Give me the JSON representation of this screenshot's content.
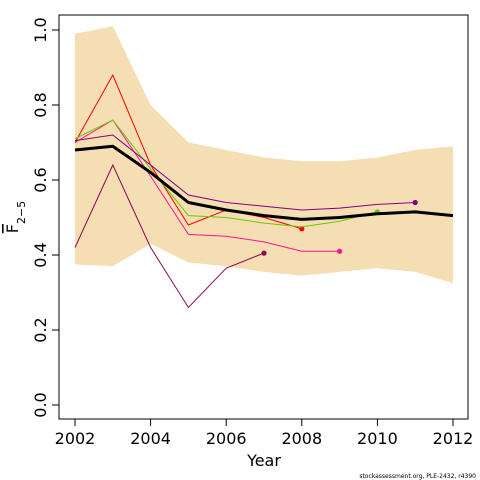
{
  "chart_data": {
    "type": "line",
    "xlabel": "Year",
    "ylabel_main": "F",
    "ylabel_sub": "2−5",
    "xlim": [
      2002,
      2012
    ],
    "ylim": [
      0,
      1
    ],
    "x_ticks": [
      "2002",
      "2004",
      "2006",
      "2008",
      "2010",
      "2012"
    ],
    "y_ticks": [
      "0.0",
      "0.2",
      "0.4",
      "0.6",
      "0.8",
      "1.0"
    ],
    "confidence_band": {
      "color": "#f5deb3",
      "x": [
        2002,
        2003,
        2004,
        2005,
        2006,
        2007,
        2008,
        2009,
        2010,
        2011,
        2012
      ],
      "upper": [
        0.99,
        1.01,
        0.8,
        0.7,
        0.68,
        0.66,
        0.65,
        0.65,
        0.66,
        0.68,
        0.69
      ],
      "lower": [
        0.375,
        0.37,
        0.43,
        0.38,
        0.37,
        0.355,
        0.345,
        0.355,
        0.365,
        0.355,
        0.325
      ]
    },
    "main_series": {
      "color": "#000000",
      "x": [
        2002,
        2003,
        2004,
        2005,
        2006,
        2007,
        2008,
        2009,
        2010,
        2011,
        2012
      ],
      "values": [
        0.68,
        0.69,
        0.62,
        0.54,
        0.52,
        0.505,
        0.495,
        0.5,
        0.51,
        0.515,
        0.505
      ]
    },
    "retro_series": [
      {
        "color": "#8b0a50",
        "end_point": true,
        "x": [
          2002,
          2003,
          2004,
          2005,
          2006,
          2007
        ],
        "values": [
          0.42,
          0.64,
          0.42,
          0.26,
          0.365,
          0.405
        ]
      },
      {
        "color": "#ff1493",
        "end_point": true,
        "x": [
          2002,
          2003,
          2004,
          2005,
          2006,
          2007,
          2008,
          2009
        ],
        "values": [
          0.7,
          0.76,
          0.61,
          0.455,
          0.45,
          0.435,
          0.41,
          0.41
        ]
      },
      {
        "color": "#ff0000",
        "end_point": true,
        "x": [
          2002,
          2003,
          2004,
          2005,
          2006,
          2007,
          2008
        ],
        "values": [
          0.7,
          0.88,
          0.64,
          0.48,
          0.52,
          0.5,
          0.47
        ]
      },
      {
        "color": "#66cc00",
        "end_point": true,
        "x": [
          2002,
          2003,
          2004,
          2005,
          2006,
          2007,
          2008,
          2009,
          2010
        ],
        "values": [
          0.71,
          0.76,
          0.63,
          0.505,
          0.5,
          0.485,
          0.475,
          0.49,
          0.515
        ]
      },
      {
        "color": "#800080",
        "end_point": true,
        "x": [
          2002,
          2003,
          2004,
          2005,
          2006,
          2007,
          2008,
          2009,
          2010,
          2011
        ],
        "values": [
          0.705,
          0.72,
          0.64,
          0.56,
          0.54,
          0.53,
          0.52,
          0.525,
          0.535,
          0.54
        ]
      }
    ]
  },
  "credit": "stockassessment.org, PLE-2432, r4390"
}
